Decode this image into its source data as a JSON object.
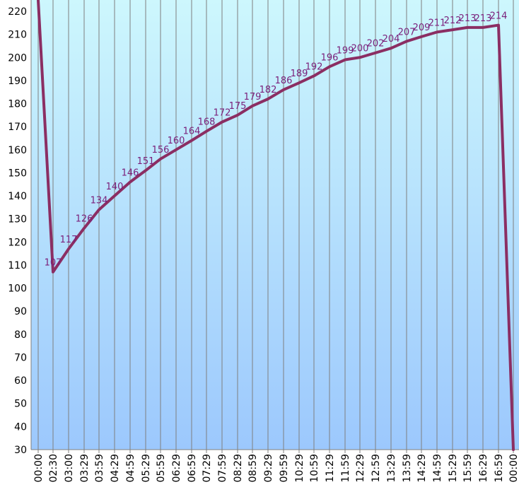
{
  "chart_data": {
    "type": "line",
    "title": "",
    "xlabel": "",
    "ylabel": "",
    "ylim": [
      30,
      220
    ],
    "yticks": [
      30,
      40,
      50,
      60,
      70,
      80,
      90,
      100,
      110,
      120,
      130,
      140,
      150,
      160,
      170,
      180,
      190,
      200,
      210,
      220
    ],
    "grid": "vertical",
    "legend": "none",
    "colors": {
      "line": "#8b2e63",
      "labels": "#7a1f7a",
      "bg_top": "#cdf7fd",
      "bg_bottom": "#9cc8fd",
      "grid": "#7f7f7f"
    },
    "x_tick_labels": [
      "00:00",
      "02:30",
      "03:00",
      "03:29",
      "03:59",
      "04:29",
      "04:59",
      "05:29",
      "05:59",
      "06:29",
      "06:59",
      "07:29",
      "07:59",
      "08:29",
      "08:59",
      "09:29",
      "09:59",
      "10:29",
      "10:59",
      "11:29",
      "11:59",
      "12:29",
      "12:59",
      "13:29",
      "13:59",
      "14:29",
      "14:59",
      "15:29",
      "15:59",
      "16:29",
      "16:59",
      "00:00"
    ],
    "series": [
      {
        "x": [
          "00:00",
          "02:30",
          "03:00",
          "03:29",
          "03:59",
          "04:29",
          "04:59",
          "05:29",
          "05:59",
          "06:29",
          "06:59",
          "07:29",
          "07:59",
          "08:29",
          "08:59",
          "09:29",
          "09:59",
          "10:29",
          "10:59",
          "11:29",
          "11:59",
          "12:29",
          "12:59",
          "13:29",
          "13:59",
          "14:29",
          "14:59",
          "15:29",
          "15:59",
          "16:29",
          "16:59",
          "00:00"
        ],
        "values": [
          225,
          107,
          117,
          126,
          134,
          140,
          146,
          151,
          156,
          160,
          164,
          168,
          172,
          175,
          179,
          182,
          186,
          189,
          192,
          196,
          199,
          200,
          202,
          204,
          207,
          209,
          211,
          212,
          213,
          213,
          214,
          30
        ],
        "data_labels": [
          "",
          "107",
          "117",
          "126",
          "134",
          "140",
          "146",
          "151",
          "156",
          "160",
          "164",
          "168",
          "172",
          "175",
          "179",
          "182",
          "186",
          "189",
          "192",
          "196",
          "199",
          "200",
          "202",
          "204",
          "207",
          "209",
          "211",
          "212",
          "213",
          "213",
          "214",
          ""
        ]
      }
    ]
  }
}
